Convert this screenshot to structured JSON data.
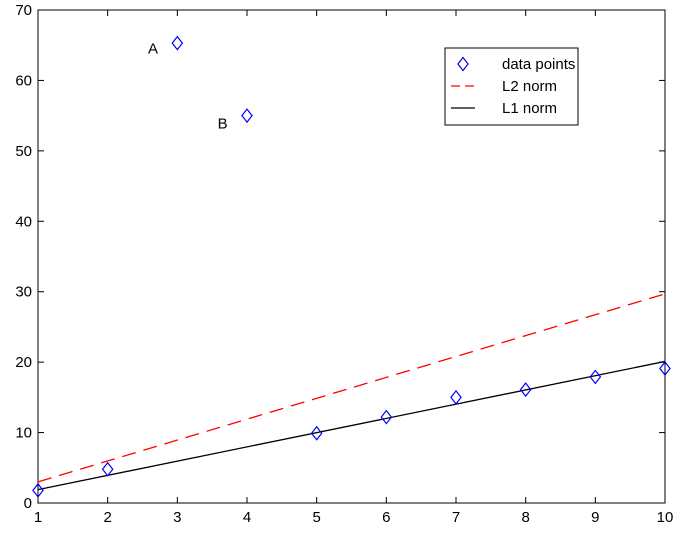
{
  "chart_data": {
    "type": "scatter",
    "xlim": [
      1,
      10
    ],
    "ylim": [
      0,
      70
    ],
    "x_ticks": [
      "1",
      "2",
      "3",
      "4",
      "5",
      "6",
      "7",
      "8",
      "9",
      "10"
    ],
    "y_ticks": [
      "0",
      "10",
      "20",
      "30",
      "40",
      "50",
      "60",
      "70"
    ],
    "grid": false,
    "legend_position": "top-right",
    "series": [
      {
        "name": "data points",
        "type": "scatter",
        "marker": "diamond",
        "color": "#0000ff",
        "x": [
          1,
          2,
          3,
          4,
          5,
          6,
          7,
          8,
          9,
          10
        ],
        "y": [
          1.8,
          4.8,
          65.3,
          55.0,
          9.9,
          12.2,
          15.0,
          16.1,
          17.9,
          19.1
        ]
      },
      {
        "name": "L2 norm",
        "type": "line",
        "style": "dashed",
        "color": "#ff0000",
        "x": [
          1,
          10
        ],
        "y": [
          3.0,
          29.7
        ]
      },
      {
        "name": "L1 norm",
        "type": "line",
        "style": "solid",
        "color": "#000000",
        "x": [
          1,
          10
        ],
        "y": [
          1.9,
          20.1
        ]
      }
    ],
    "annotations": [
      {
        "text": "A",
        "x": 2.65,
        "y": 64.5
      },
      {
        "text": "B",
        "x": 3.65,
        "y": 53.9
      }
    ]
  }
}
